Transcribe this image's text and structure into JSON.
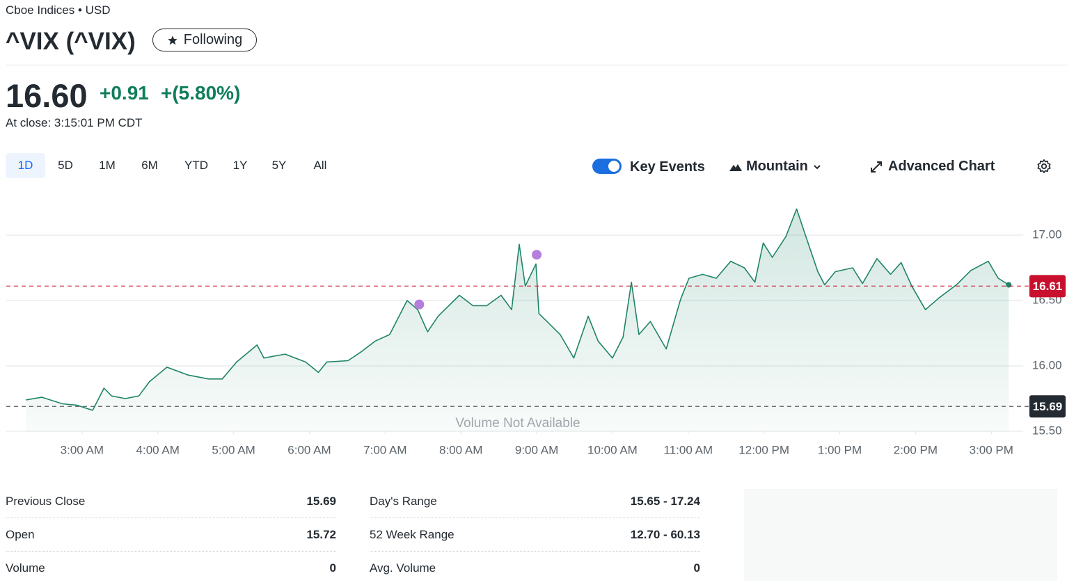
{
  "header": {
    "exchange": "Cboe Indices • USD",
    "title": "^VIX (^VIX)",
    "follow_button": "Following",
    "price": "16.60",
    "change": "+0.91",
    "change_pct": "+(5.80%)",
    "time": "At close: 3:15:01 PM CDT"
  },
  "toolbar": {
    "ranges": [
      "1D",
      "5D",
      "1M",
      "6M",
      "YTD",
      "1Y",
      "5Y",
      "All"
    ],
    "key_events": "Key Events",
    "chart_type": "Mountain",
    "advanced": "Advanced Chart"
  },
  "chart_data": {
    "type": "area",
    "color": "#1f8468",
    "x": [
      2.26,
      2.47,
      2.74,
      2.93,
      3.14,
      3.29,
      3.39,
      3.57,
      3.75,
      3.89,
      4.12,
      4.4,
      4.67,
      4.85,
      5.04,
      5.31,
      5.4,
      5.68,
      5.95,
      6.12,
      6.23,
      6.51,
      6.69,
      6.87,
      7.06,
      7.29,
      7.43,
      7.56,
      7.7,
      7.98,
      8.16,
      8.34,
      8.53,
      8.67,
      8.77,
      8.85,
      8.99,
      9.03,
      9.17,
      9.31,
      9.49,
      9.68,
      9.81,
      10.0,
      10.14,
      10.25,
      10.35,
      10.5,
      10.71,
      10.9,
      11.01,
      11.19,
      11.37,
      11.56,
      11.74,
      11.88,
      11.99,
      12.11,
      12.29,
      12.43,
      12.57,
      12.71,
      12.8,
      12.94,
      13.17,
      13.3,
      13.49,
      13.67,
      13.81,
      13.95,
      14.13,
      14.31,
      14.54,
      14.73,
      14.96,
      15.09,
      15.23
    ],
    "values": [
      15.74,
      15.76,
      15.71,
      15.7,
      15.66,
      15.83,
      15.77,
      15.75,
      15.77,
      15.88,
      15.99,
      15.93,
      15.9,
      15.9,
      16.03,
      16.16,
      16.06,
      16.09,
      16.03,
      15.95,
      16.03,
      16.04,
      16.11,
      16.19,
      16.24,
      16.5,
      16.43,
      16.26,
      16.38,
      16.54,
      16.46,
      16.46,
      16.54,
      16.43,
      16.93,
      16.61,
      16.78,
      16.4,
      16.32,
      16.24,
      16.06,
      16.38,
      16.19,
      16.06,
      16.22,
      16.64,
      16.24,
      16.34,
      16.13,
      16.51,
      16.67,
      16.7,
      16.67,
      16.8,
      16.75,
      16.64,
      16.94,
      16.83,
      16.99,
      17.2,
      16.96,
      16.72,
      16.62,
      16.72,
      16.75,
      16.63,
      16.82,
      16.7,
      16.79,
      16.61,
      16.43,
      16.52,
      16.62,
      16.73,
      16.8,
      16.67,
      16.62
    ],
    "xlim": [
      2.0,
      15.42
    ],
    "ylim": [
      15.5,
      17.25
    ],
    "xticks": [
      {
        "value": 3,
        "label": "3:00 AM"
      },
      {
        "value": 4,
        "label": "4:00 AM"
      },
      {
        "value": 5,
        "label": "5:00 AM"
      },
      {
        "value": 6,
        "label": "6:00 AM"
      },
      {
        "value": 7,
        "label": "7:00 AM"
      },
      {
        "value": 8,
        "label": "8:00 AM"
      },
      {
        "value": 9,
        "label": "9:00 AM"
      },
      {
        "value": 10,
        "label": "10:00 AM"
      },
      {
        "value": 11,
        "label": "11:00 AM"
      },
      {
        "value": 12,
        "label": "12:00 PM"
      },
      {
        "value": 13,
        "label": "1:00 PM"
      },
      {
        "value": 14,
        "label": "2:00 PM"
      },
      {
        "value": 15,
        "label": "3:00 PM"
      }
    ],
    "yticks": [
      {
        "value": 15.5,
        "label": "15.50"
      },
      {
        "value": 16,
        "label": "16.00"
      },
      {
        "value": 16.5,
        "label": "16.50"
      },
      {
        "value": 17,
        "label": "17.00"
      }
    ],
    "grid": true,
    "reference_lines": [
      {
        "value": 16.61,
        "color": "#c8102e"
      },
      {
        "value": 15.69,
        "color": "#232a31"
      }
    ],
    "events": {
      "x": [
        7.45,
        9.0
      ],
      "values": [
        16.47,
        16.85
      ],
      "color": "#b57edc"
    },
    "annotation": "Volume Not Available"
  },
  "stats": [
    [
      {
        "label": "Previous Close",
        "value": "15.69"
      },
      {
        "label": "Open",
        "value": "15.72"
      },
      {
        "label": "Volume",
        "value": "0"
      }
    ],
    [
      {
        "label": "Day's Range",
        "value": "15.65 - 17.24"
      },
      {
        "label": "52 Week Range",
        "value": "12.70 - 60.13"
      },
      {
        "label": "Avg. Volume",
        "value": "0"
      }
    ]
  ]
}
